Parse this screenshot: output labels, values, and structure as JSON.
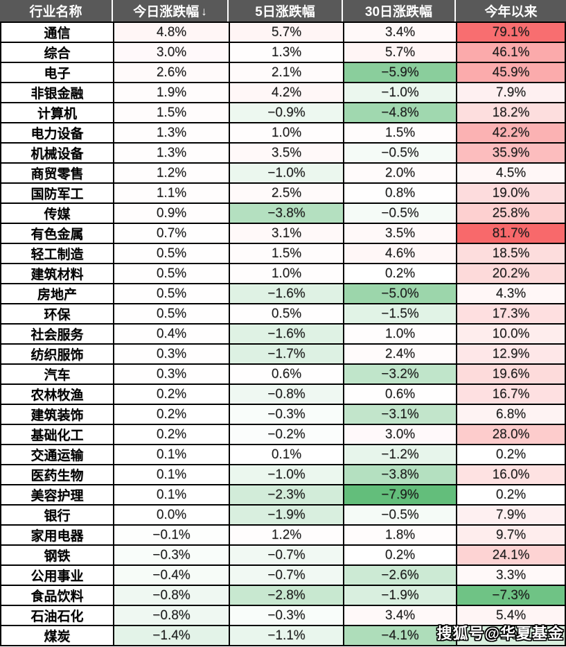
{
  "table": {
    "sorted_column_index": 1,
    "sort_icon": "↓",
    "column_names": [
      "industry",
      "today",
      "5day",
      "30day",
      "ytd"
    ]
  },
  "watermark": {
    "text": "搜狐号@华夏基金"
  },
  "colors": {
    "header_bg": "#595959",
    "header_text": "#FFFFFF",
    "positive_max": "#F8696B",
    "negative_max": "#63BE7B",
    "neutral": "#FFFFFF",
    "grid": "#000000"
  },
  "chart_data": {
    "type": "table",
    "title": "",
    "unit": "%",
    "sorted_by": "今日涨跌幅 descending",
    "columns": [
      "行业名称",
      "今日涨跌幅",
      "5日涨跌幅",
      "30日涨跌幅",
      "今年以来"
    ],
    "color_scale": {
      "min": -7.9,
      "max": 81.7,
      "positive": "white to #F8696B",
      "negative": "white to #63BE7B"
    },
    "rows": [
      [
        "通信",
        4.8,
        5.7,
        3.4,
        79.1
      ],
      [
        "综合",
        3.0,
        1.3,
        5.7,
        46.1
      ],
      [
        "电子",
        2.6,
        2.1,
        -5.9,
        45.9
      ],
      [
        "非银金融",
        1.9,
        4.2,
        -1.0,
        7.9
      ],
      [
        "计算机",
        1.5,
        -0.9,
        -4.8,
        18.2
      ],
      [
        "电力设备",
        1.3,
        1.0,
        1.5,
        42.2
      ],
      [
        "机械设备",
        1.3,
        3.5,
        -0.5,
        35.9
      ],
      [
        "商贸零售",
        1.2,
        -1.0,
        2.0,
        4.5
      ],
      [
        "国防军工",
        1.1,
        2.5,
        0.8,
        19.0
      ],
      [
        "传媒",
        0.9,
        -3.8,
        -0.5,
        25.8
      ],
      [
        "有色金属",
        0.7,
        3.1,
        3.5,
        81.7
      ],
      [
        "轻工制造",
        0.5,
        1.5,
        4.6,
        18.5
      ],
      [
        "建筑材料",
        0.5,
        1.0,
        0.2,
        20.2
      ],
      [
        "房地产",
        0.5,
        -1.6,
        -5.0,
        4.3
      ],
      [
        "环保",
        0.5,
        0.5,
        -1.5,
        17.3
      ],
      [
        "社会服务",
        0.4,
        -1.6,
        1.0,
        10.0
      ],
      [
        "纺织服饰",
        0.3,
        -1.7,
        2.4,
        12.9
      ],
      [
        "汽车",
        0.3,
        0.6,
        -3.2,
        19.6
      ],
      [
        "农林牧渔",
        0.2,
        -0.8,
        0.6,
        16.7
      ],
      [
        "建筑装饰",
        0.2,
        -0.3,
        -3.1,
        6.8
      ],
      [
        "基础化工",
        0.2,
        -0.2,
        3.0,
        28.0
      ],
      [
        "交通运输",
        0.1,
        0.1,
        -1.2,
        0.2
      ],
      [
        "医药生物",
        0.1,
        -1.0,
        -3.8,
        16.0
      ],
      [
        "美容护理",
        0.1,
        -2.3,
        -7.9,
        0.2
      ],
      [
        "银行",
        0.0,
        -1.9,
        -0.5,
        7.9
      ],
      [
        "家用电器",
        -0.1,
        1.2,
        1.8,
        9.7
      ],
      [
        "钢铁",
        -0.3,
        -0.7,
        0.2,
        24.1
      ],
      [
        "公用事业",
        -0.4,
        -0.7,
        -2.6,
        3.3
      ],
      [
        "食品饮料",
        -0.8,
        -2.8,
        -1.9,
        -7.3
      ],
      [
        "石油石化",
        -0.8,
        -0.3,
        3.4,
        5.4
      ],
      [
        "煤炭",
        -1.4,
        -1.1,
        -4.1,
        -2.0
      ]
    ]
  }
}
